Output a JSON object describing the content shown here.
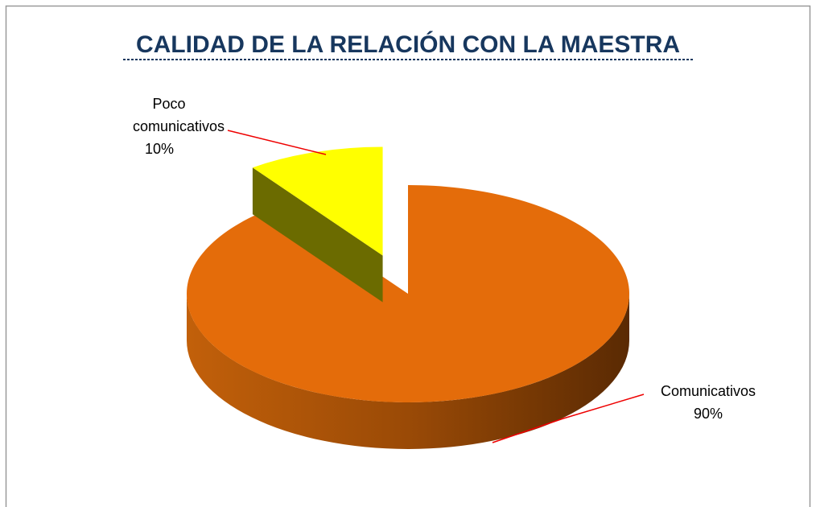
{
  "chart_data": {
    "type": "pie",
    "title": "CALIDAD DE LA RELACIÓN CON LA MAESTRA",
    "categories": [
      "Comunicativos",
      "Poco comunicativos"
    ],
    "values": [
      90,
      10
    ],
    "value_labels": [
      "90%",
      "10%"
    ],
    "colors": [
      "#e46c0a",
      "#ffff00"
    ],
    "exploded": [
      false,
      true
    ]
  }
}
